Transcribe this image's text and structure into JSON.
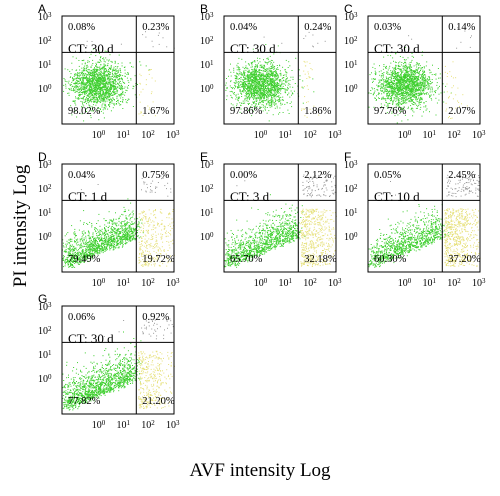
{
  "figure": {
    "ylabel": "PI intensity Log",
    "xlabel": "AVF intensity Log"
  },
  "colors": {
    "live": "#3ecf2e",
    "apoptotic": "#e6e07a",
    "dead": "#9a9a9a",
    "frame": "#000000"
  },
  "chart_data": [
    {
      "type": "scatter",
      "label": "A",
      "condition": "CT: 30 d",
      "quadrants": {
        "upper_left": "0.08%",
        "upper_right": "0.23%",
        "lower_left": "98.02%",
        "lower_right": "1.67%"
      },
      "xlim": [
        0.03,
        1000
      ],
      "ylim": [
        0.03,
        1000
      ],
      "x_gate": 30,
      "y_gate": 30,
      "xticks": [
        "10",
        "10",
        "10",
        "10"
      ],
      "xtick_exp": [
        "0",
        "1",
        "2",
        "3"
      ],
      "yticks": [
        "10",
        "10",
        "10",
        "10"
      ],
      "ytick_exp": [
        "0",
        "1",
        "2",
        "3"
      ]
    },
    {
      "type": "scatter",
      "label": "B",
      "condition": "CT: 30 d",
      "quadrants": {
        "upper_left": "0.04%",
        "upper_right": "0.24%",
        "lower_left": "97.86%",
        "lower_right": "1.86%"
      },
      "xlim": [
        0.03,
        1000
      ],
      "ylim": [
        0.03,
        1000
      ],
      "x_gate": 30,
      "y_gate": 30,
      "xticks": [
        "10",
        "10",
        "10",
        "10"
      ],
      "xtick_exp": [
        "0",
        "1",
        "2",
        "3"
      ],
      "yticks": [
        "10",
        "10",
        "10",
        "10"
      ],
      "ytick_exp": [
        "0",
        "1",
        "2",
        "3"
      ]
    },
    {
      "type": "scatter",
      "label": "C",
      "condition": "CT: 30 d",
      "quadrants": {
        "upper_left": "0.03%",
        "upper_right": "0.14%",
        "lower_left": "97.76%",
        "lower_right": "2.07%"
      },
      "xlim": [
        0.03,
        1000
      ],
      "ylim": [
        0.03,
        1000
      ],
      "x_gate": 30,
      "y_gate": 30,
      "xticks": [
        "10",
        "10",
        "10",
        "10"
      ],
      "xtick_exp": [
        "0",
        "1",
        "2",
        "3"
      ],
      "yticks": [
        "10",
        "10",
        "10",
        "10"
      ],
      "ytick_exp": [
        "0",
        "1",
        "2",
        "3"
      ]
    },
    {
      "type": "scatter",
      "label": "D",
      "condition": "CT: 1 d",
      "quadrants": {
        "upper_left": "0.04%",
        "upper_right": "0.75%",
        "lower_left": "79.49%",
        "lower_right": "19.72%"
      },
      "xlim": [
        0.03,
        1000
      ],
      "ylim": [
        0.03,
        1000
      ],
      "x_gate": 30,
      "y_gate": 30,
      "xticks": [
        "10",
        "10",
        "10",
        "10"
      ],
      "xtick_exp": [
        "0",
        "1",
        "2",
        "3"
      ],
      "yticks": [
        "10",
        "10",
        "10",
        "10"
      ],
      "ytick_exp": [
        "0",
        "1",
        "2",
        "3"
      ]
    },
    {
      "type": "scatter",
      "label": "E",
      "condition": "CT: 3 d",
      "quadrants": {
        "upper_left": "0.00%",
        "upper_right": "2.12%",
        "lower_left": "65.70%",
        "lower_right": "32.18%"
      },
      "xlim": [
        0.03,
        1000
      ],
      "ylim": [
        0.03,
        1000
      ],
      "x_gate": 30,
      "y_gate": 30,
      "xticks": [
        "10",
        "10",
        "10",
        "10"
      ],
      "xtick_exp": [
        "0",
        "1",
        "2",
        "3"
      ],
      "yticks": [
        "10",
        "10",
        "10",
        "10"
      ],
      "ytick_exp": [
        "0",
        "1",
        "2",
        "3"
      ]
    },
    {
      "type": "scatter",
      "label": "F",
      "condition": "CT: 10 d",
      "quadrants": {
        "upper_left": "0.05%",
        "upper_right": "2.45%",
        "lower_left": "60.30%",
        "lower_right": "37.20%"
      },
      "xlim": [
        0.03,
        1000
      ],
      "ylim": [
        0.03,
        1000
      ],
      "x_gate": 30,
      "y_gate": 30,
      "xticks": [
        "10",
        "10",
        "10",
        "10"
      ],
      "xtick_exp": [
        "0",
        "1",
        "2",
        "3"
      ],
      "yticks": [
        "10",
        "10",
        "10",
        "10"
      ],
      "ytick_exp": [
        "0",
        "1",
        "2",
        "3"
      ]
    },
    {
      "type": "scatter",
      "label": "G",
      "condition": "CT: 30 d",
      "quadrants": {
        "upper_left": "0.06%",
        "upper_right": "0.92%",
        "lower_left": "77.82%",
        "lower_right": "21.20%"
      },
      "xlim": [
        0.03,
        1000
      ],
      "ylim": [
        0.03,
        1000
      ],
      "x_gate": 30,
      "y_gate": 30,
      "xticks": [
        "10",
        "10",
        "10",
        "10"
      ],
      "xtick_exp": [
        "0",
        "1",
        "2",
        "3"
      ],
      "yticks": [
        "10",
        "10",
        "10",
        "10"
      ],
      "ytick_exp": [
        "0",
        "1",
        "2",
        "3"
      ]
    }
  ]
}
